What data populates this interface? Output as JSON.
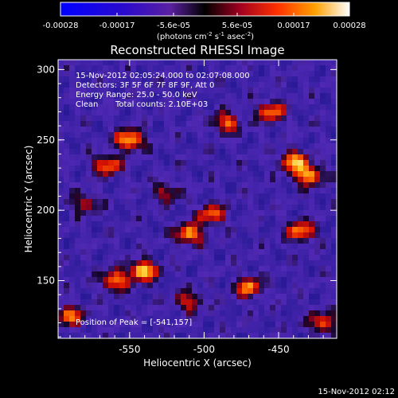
{
  "colorbar": {
    "tick_labels": [
      "-0.00028",
      "-0.00017",
      "-5.6e-05",
      "5.6e-05",
      "0.00017",
      "0.00028"
    ],
    "range": [
      -0.00028,
      0.00028
    ]
  },
  "image": {
    "title": "Reconstructed RHESSI Image",
    "time_range": "15-Nov-2012 02:05:24.000 to 02:07:08.000",
    "detectors": "Detectors: 3F 5F 6F 7F 8F 9F, Att 0",
    "energy_range": "Energy Range: 25.0 - 50.0 keV",
    "method": "Clean",
    "total_counts": "Total counts: 2.10E+03",
    "peak": "Position of Peak = [-541,157]"
  },
  "axes": {
    "x_label": "Heliocentric X (arcsec)",
    "y_label": "Heliocentric Y (arcsec)",
    "x_ticks": [
      "-550",
      "-500",
      "-450"
    ],
    "y_ticks": [
      "150",
      "200",
      "250",
      "300"
    ],
    "x_range": [
      -598,
      -411
    ],
    "y_range": [
      109,
      307
    ]
  },
  "footer": {
    "timestamp": "15-Nov-2012 02:12"
  },
  "colors": {
    "background": "#000000",
    "low": "#2a1a8a",
    "mid": "#6a2ab8",
    "high": "#ff6a00",
    "peak": "#fff5a0"
  },
  "chart_data": {
    "type": "heatmap",
    "title": "Reconstructed RHESSI Image",
    "xlabel": "Heliocentric X (arcsec)",
    "ylabel": "Heliocentric Y (arcsec)",
    "xlim": [
      -598,
      -411
    ],
    "ylim": [
      109,
      307
    ],
    "colorbar_range": [
      -0.00028,
      0.00028
    ],
    "grid": false,
    "bright_sources": [
      {
        "x": -550,
        "y": 250,
        "level": 0.95
      },
      {
        "x": -565,
        "y": 232,
        "level": 0.75
      },
      {
        "x": -541,
        "y": 157,
        "level": 1.0
      },
      {
        "x": -560,
        "y": 150,
        "level": 0.8
      },
      {
        "x": -510,
        "y": 183,
        "level": 0.85
      },
      {
        "x": -495,
        "y": 197,
        "level": 0.7
      },
      {
        "x": -430,
        "y": 225,
        "level": 0.9
      },
      {
        "x": -440,
        "y": 235,
        "level": 0.85
      },
      {
        "x": -455,
        "y": 270,
        "level": 0.75
      },
      {
        "x": -485,
        "y": 262,
        "level": 0.7
      },
      {
        "x": -435,
        "y": 185,
        "level": 0.8
      },
      {
        "x": -420,
        "y": 120,
        "level": 0.7
      },
      {
        "x": -470,
        "y": 145,
        "level": 0.75
      },
      {
        "x": -510,
        "y": 135,
        "level": 0.55
      },
      {
        "x": -590,
        "y": 125,
        "level": 0.7
      },
      {
        "x": -580,
        "y": 205,
        "level": 0.5
      },
      {
        "x": -525,
        "y": 213,
        "level": 0.45
      }
    ]
  }
}
